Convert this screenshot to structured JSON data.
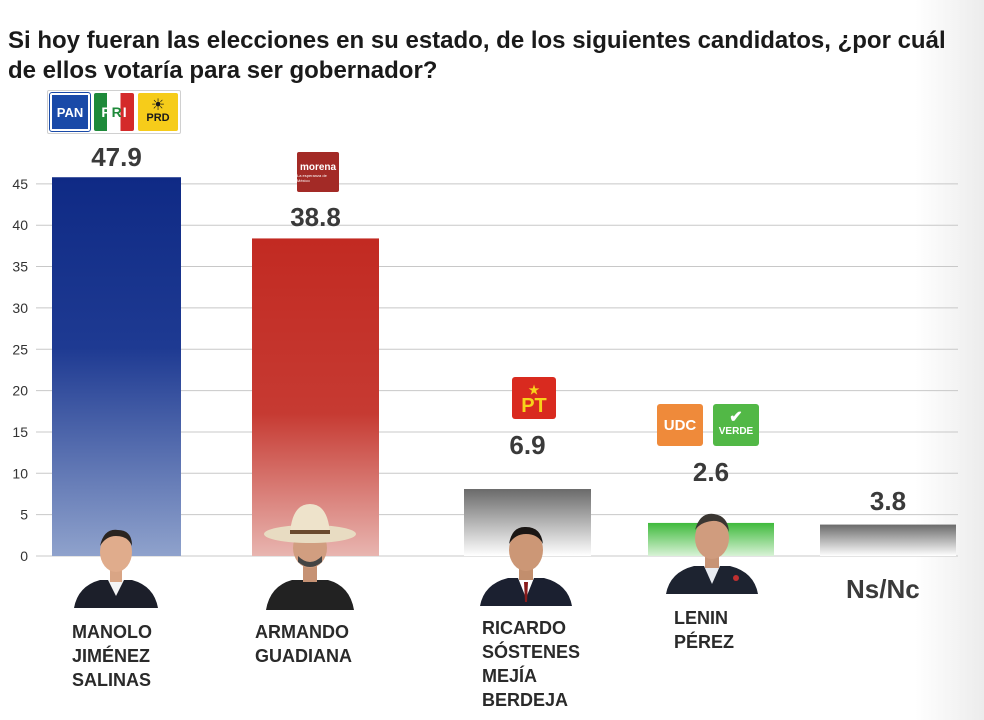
{
  "title": "Si hoy fueran las elecciones en su estado, de los siguientes candidatos, ¿por cuál de ellos votaría para ser gobernador?",
  "chart_data": {
    "type": "bar",
    "title": "Si hoy fueran las elecciones en su estado, de los siguientes candidatos, ¿por cuál de ellos votaría para ser gobernador?",
    "categories": [
      "MANOLO\nJIMÉNEZ\nSALINAS",
      "ARMANDO\nGUADIANA",
      "RICARDO\nSÓSTENES\nMEJÍA\nBERDEJA",
      "LENIN\nPÉREZ",
      "Ns/Nc"
    ],
    "values": [
      47.9,
      38.8,
      6.9,
      2.6,
      3.8
    ],
    "value_labels": [
      "47.9",
      "38.8",
      "6.9",
      "2.6",
      "3.8"
    ],
    "yticks": [
      "0",
      "5",
      "10",
      "15",
      "20",
      "25",
      "30",
      "35",
      "40",
      "45"
    ],
    "ylim": [
      0,
      50
    ],
    "grid": true,
    "colors": [
      "#1a3a8f",
      "#c0312b",
      "#6e6e6e",
      "#4cc04a",
      "#6e6e6e"
    ]
  },
  "logos": {
    "pan": "PAN",
    "pri_letters": [
      "P",
      "R",
      "I"
    ],
    "prd": "PRD",
    "morena": "morena",
    "morena_sub": "La esperanza de México",
    "pt": "PT",
    "udc": "UDC",
    "verde": "VERDE"
  }
}
